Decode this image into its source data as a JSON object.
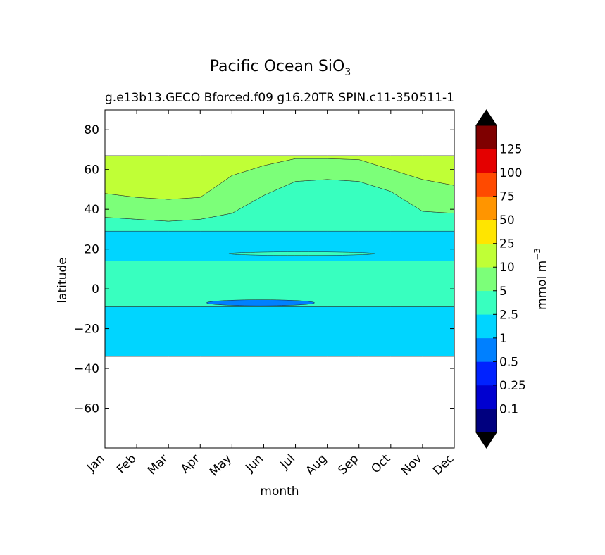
{
  "chart_data": {
    "type": "heatmap",
    "title": "Pacific Ocean SiO",
    "title_subscript": "3",
    "subtitle_left": "g.e13b13.GECO Bforced.f09 g16.20TR SPIN.c11-350",
    "subtitle_right": "511-1",
    "xlabel": "month",
    "ylabel": "latitude",
    "x_categories": [
      "Jan",
      "Feb",
      "Mar",
      "Apr",
      "May",
      "Jun",
      "Jul",
      "Aug",
      "Sep",
      "Oct",
      "Nov",
      "Dec"
    ],
    "ylim": [
      -80,
      90
    ],
    "y_ticks": [
      80,
      60,
      40,
      20,
      0,
      -20,
      -40,
      -60
    ],
    "y_tick_labels": [
      "80",
      "60",
      "40",
      "20",
      "0",
      "−20",
      "−40",
      "−60"
    ],
    "data_extent": {
      "lat_min": -34,
      "lat_max": 67
    },
    "colorbar": {
      "label": "mmol m",
      "label_superscript": "−3",
      "levels": [
        "0.1",
        "0.25",
        "0.5",
        "1",
        "2.5",
        "5",
        "10",
        "25",
        "50",
        "75",
        "100",
        "125"
      ],
      "colors": [
        "#00007f",
        "#0000d0",
        "#0022ff",
        "#0080ff",
        "#00d5ff",
        "#38ffbf",
        "#7cff79",
        "#c0ff36",
        "#ffe500",
        "#ff9500",
        "#ff4a00",
        "#e40000",
        "#7f0000"
      ],
      "extend_min_color": "#000000",
      "extend_max_color": "#000000"
    },
    "contour_bands": [
      {
        "range": "1-2.5",
        "color": "#00d5ff",
        "lat_from": -34,
        "lat_to": -9
      },
      {
        "range": "2.5-5",
        "color": "#38ffbf",
        "lat_from": -9,
        "lat_to": 14
      },
      {
        "range": "1-2.5",
        "color": "#00d5ff",
        "lat_from": 14,
        "lat_to": 29
      },
      {
        "range": "2.5-5",
        "color": "#38ffbf",
        "lat_from": 29,
        "lat_to_by_month": [
          36,
          35,
          34,
          35,
          38,
          47,
          54,
          55,
          54,
          49,
          39,
          38
        ]
      },
      {
        "range": "5-10",
        "color": "#7cff79",
        "lat_to_by_month": [
          48,
          46,
          45,
          46,
          57,
          62,
          65.5,
          65.5,
          65,
          60,
          55,
          52
        ]
      },
      {
        "range": "10-25",
        "color": "#c0ff36",
        "lat_to": 67
      }
    ],
    "small_features": [
      {
        "range": "0.5-1",
        "color": "#0080ff",
        "month_from": 3.2,
        "month_to": 6.6,
        "lat_from": -8.5,
        "lat_to": -5.5
      },
      {
        "range": "2.5-5",
        "color": "#38ffbf",
        "month_from": 3.9,
        "month_to": 8.5,
        "lat_from": 16.8,
        "lat_to": 18.6
      }
    ]
  }
}
